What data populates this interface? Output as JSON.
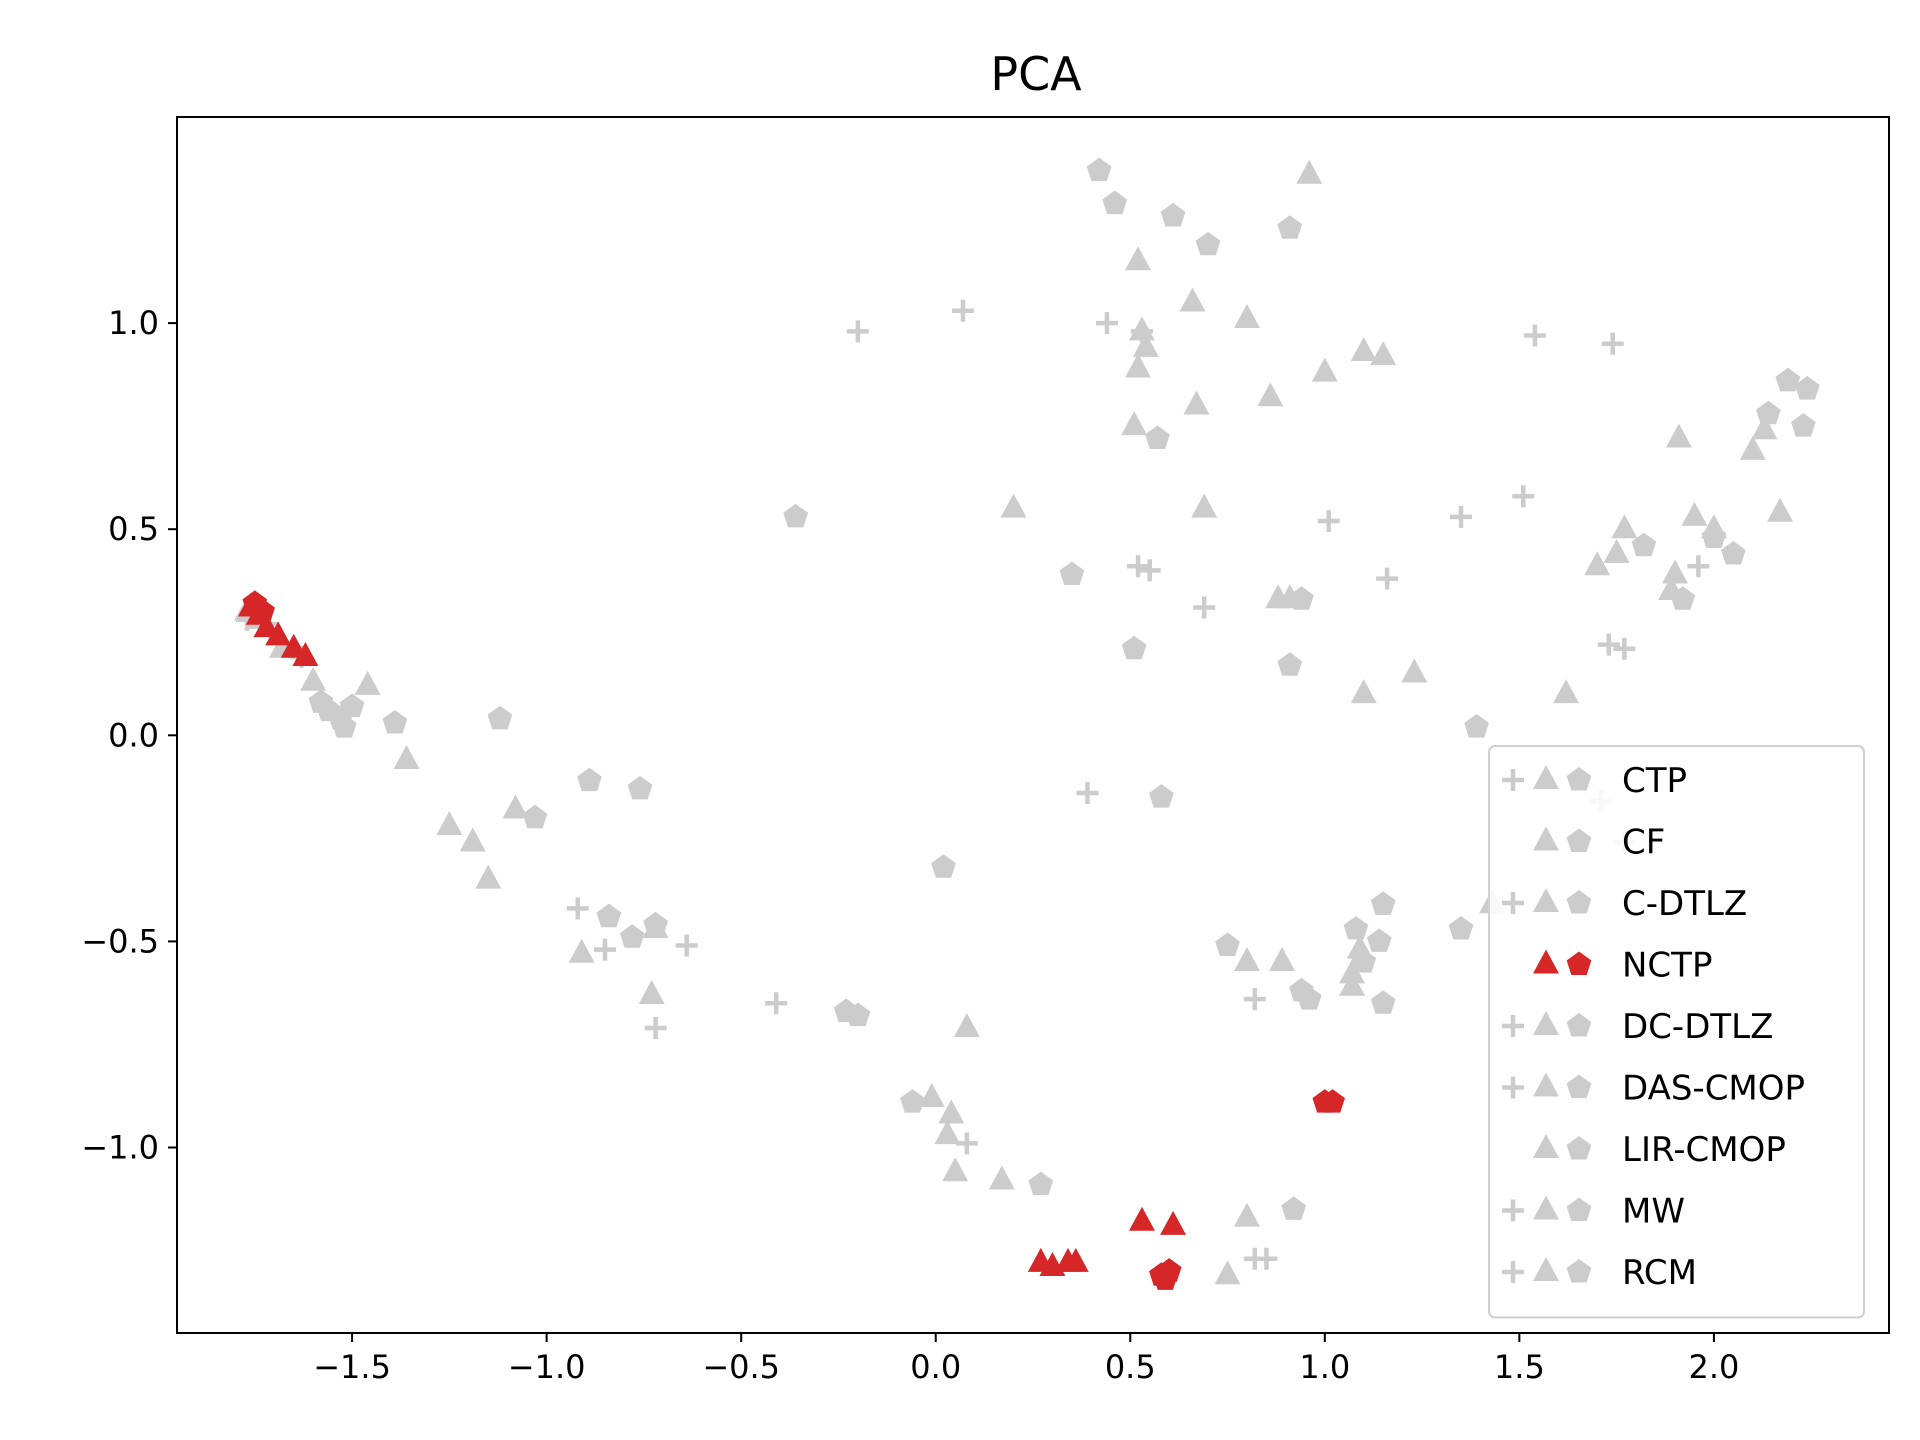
{
  "chart_data": {
    "type": "scatter",
    "title": "PCA",
    "xlabel": "",
    "ylabel": "",
    "xlim": [
      -1.95,
      2.45
    ],
    "ylim": [
      -1.45,
      1.5
    ],
    "xticks": [
      -1.5,
      -1.0,
      -0.5,
      0.0,
      0.5,
      1.0,
      1.5,
      2.0
    ],
    "yticks": [
      -1.0,
      -0.5,
      0.0,
      0.5,
      1.0
    ],
    "xtick_labels": [
      "−1.5",
      "−1.0",
      "−0.5",
      "0.0",
      "0.5",
      "1.0",
      "1.5",
      "2.0"
    ],
    "ytick_labels": [
      "−1.0",
      "−0.5",
      "0.0",
      "0.5",
      "1.0"
    ],
    "grid": false,
    "legend_position": "lower-right",
    "colors": {
      "gray": "#cccccc",
      "red": "#d62728"
    },
    "legend": [
      {
        "name": "CTP",
        "markers": [
          "plus",
          "triangle",
          "pentagon"
        ],
        "color": "#cccccc"
      },
      {
        "name": "CF",
        "markers": [
          "triangle",
          "pentagon"
        ],
        "color": "#cccccc"
      },
      {
        "name": "C-DTLZ",
        "markers": [
          "plus",
          "triangle",
          "pentagon"
        ],
        "color": "#cccccc"
      },
      {
        "name": "NCTP",
        "markers": [
          "triangle",
          "pentagon"
        ],
        "color": "#d62728"
      },
      {
        "name": "DC-DTLZ",
        "markers": [
          "plus",
          "triangle",
          "pentagon"
        ],
        "color": "#cccccc"
      },
      {
        "name": "DAS-CMOP",
        "markers": [
          "plus",
          "triangle",
          "pentagon"
        ],
        "color": "#cccccc"
      },
      {
        "name": "LIR-CMOP",
        "markers": [
          "triangle",
          "pentagon"
        ],
        "color": "#cccccc"
      },
      {
        "name": "MW",
        "markers": [
          "plus",
          "triangle",
          "pentagon"
        ],
        "color": "#cccccc"
      },
      {
        "name": "RCM",
        "markers": [
          "plus",
          "triangle",
          "pentagon"
        ],
        "color": "#cccccc"
      }
    ],
    "points": {
      "gray_plus": [
        [
          -0.2,
          0.98
        ],
        [
          0.07,
          1.03
        ],
        [
          0.44,
          1.0
        ],
        [
          0.53,
          0.98
        ],
        [
          1.54,
          0.97
        ],
        [
          1.74,
          0.95
        ],
        [
          1.51,
          0.58
        ],
        [
          1.35,
          0.53
        ],
        [
          1.01,
          0.52
        ],
        [
          0.52,
          0.41
        ],
        [
          0.55,
          0.4
        ],
        [
          1.16,
          0.38
        ],
        [
          0.69,
          0.31
        ],
        [
          1.96,
          0.41
        ],
        [
          1.73,
          0.22
        ],
        [
          1.77,
          0.21
        ],
        [
          0.39,
          -0.14
        ],
        [
          1.71,
          -0.16
        ],
        [
          1.77,
          -0.26
        ],
        [
          -0.92,
          -0.42
        ],
        [
          -0.85,
          -0.52
        ],
        [
          -0.64,
          -0.51
        ],
        [
          -0.41,
          -0.65
        ],
        [
          -0.72,
          -0.71
        ],
        [
          0.08,
          -0.99
        ],
        [
          0.82,
          -0.64
        ],
        [
          0.82,
          -1.27
        ],
        [
          0.85,
          -1.27
        ],
        [
          -1.77,
          0.28
        ],
        [
          -1.72,
          0.27
        ],
        [
          -1.63,
          0.19
        ]
      ],
      "gray_triangle": [
        [
          0.96,
          1.36
        ],
        [
          0.52,
          1.15
        ],
        [
          0.66,
          1.05
        ],
        [
          0.8,
          1.01
        ],
        [
          0.53,
          0.98
        ],
        [
          0.54,
          0.94
        ],
        [
          0.52,
          0.89
        ],
        [
          1.0,
          0.88
        ],
        [
          1.1,
          0.93
        ],
        [
          1.15,
          0.92
        ],
        [
          0.86,
          0.82
        ],
        [
          0.67,
          0.8
        ],
        [
          0.51,
          0.75
        ],
        [
          1.91,
          0.72
        ],
        [
          2.13,
          0.74
        ],
        [
          2.1,
          0.69
        ],
        [
          0.2,
          0.55
        ],
        [
          0.69,
          0.55
        ],
        [
          1.77,
          0.5
        ],
        [
          1.95,
          0.53
        ],
        [
          2.0,
          0.5
        ],
        [
          2.17,
          0.54
        ],
        [
          1.75,
          0.44
        ],
        [
          1.7,
          0.41
        ],
        [
          1.9,
          0.39
        ],
        [
          1.89,
          0.35
        ],
        [
          0.88,
          0.33
        ],
        [
          0.91,
          0.33
        ],
        [
          1.23,
          0.15
        ],
        [
          1.1,
          0.1
        ],
        [
          1.62,
          0.1
        ],
        [
          -1.77,
          0.3
        ],
        [
          -1.74,
          0.28
        ],
        [
          -1.68,
          0.21
        ],
        [
          -1.6,
          0.13
        ],
        [
          -1.46,
          0.12
        ],
        [
          -1.36,
          -0.06
        ],
        [
          -1.25,
          -0.22
        ],
        [
          -1.19,
          -0.26
        ],
        [
          -1.15,
          -0.35
        ],
        [
          -1.08,
          -0.18
        ],
        [
          -0.91,
          -0.53
        ],
        [
          -0.72,
          -0.47
        ],
        [
          -0.73,
          -0.63
        ],
        [
          0.08,
          -0.71
        ],
        [
          -0.01,
          -0.88
        ],
        [
          0.04,
          -0.92
        ],
        [
          0.03,
          -0.97
        ],
        [
          0.05,
          -1.06
        ],
        [
          0.17,
          -1.08
        ],
        [
          0.8,
          -0.55
        ],
        [
          0.89,
          -0.55
        ],
        [
          1.07,
          -0.58
        ],
        [
          1.07,
          -0.61
        ],
        [
          1.09,
          -0.52
        ],
        [
          1.43,
          -0.41
        ],
        [
          0.8,
          -1.17
        ],
        [
          0.75,
          -1.31
        ]
      ],
      "gray_pentagon": [
        [
          0.42,
          1.37
        ],
        [
          0.46,
          1.29
        ],
        [
          0.61,
          1.26
        ],
        [
          0.7,
          1.19
        ],
        [
          0.91,
          1.23
        ],
        [
          2.19,
          0.86
        ],
        [
          2.24,
          0.84
        ],
        [
          2.14,
          0.78
        ],
        [
          2.23,
          0.75
        ],
        [
          0.57,
          0.72
        ],
        [
          -0.36,
          0.53
        ],
        [
          0.35,
          0.39
        ],
        [
          1.82,
          0.46
        ],
        [
          2.0,
          0.48
        ],
        [
          2.05,
          0.44
        ],
        [
          1.92,
          0.33
        ],
        [
          0.94,
          0.33
        ],
        [
          0.51,
          0.21
        ],
        [
          0.91,
          0.17
        ],
        [
          1.39,
          0.02
        ],
        [
          -1.12,
          0.04
        ],
        [
          -1.39,
          0.03
        ],
        [
          -1.58,
          0.08
        ],
        [
          -1.56,
          0.06
        ],
        [
          -1.53,
          0.04
        ],
        [
          -1.52,
          0.02
        ],
        [
          -1.5,
          0.07
        ],
        [
          -1.03,
          -0.2
        ],
        [
          -0.89,
          -0.11
        ],
        [
          -0.76,
          -0.13
        ],
        [
          0.58,
          -0.15
        ],
        [
          0.02,
          -0.32
        ],
        [
          -0.84,
          -0.44
        ],
        [
          -0.78,
          -0.49
        ],
        [
          -0.72,
          -0.46
        ],
        [
          -0.23,
          -0.67
        ],
        [
          -0.2,
          -0.68
        ],
        [
          -0.06,
          -0.89
        ],
        [
          0.27,
          -1.09
        ],
        [
          0.75,
          -0.51
        ],
        [
          0.94,
          -0.62
        ],
        [
          0.96,
          -0.64
        ],
        [
          1.08,
          -0.47
        ],
        [
          1.15,
          -0.41
        ],
        [
          1.14,
          -0.5
        ],
        [
          1.1,
          -0.55
        ],
        [
          1.15,
          -0.65
        ],
        [
          1.35,
          -0.47
        ],
        [
          0.92,
          -1.15
        ]
      ],
      "red_triangle": [
        [
          -1.76,
          0.31
        ],
        [
          -1.74,
          0.29
        ],
        [
          -1.72,
          0.26
        ],
        [
          -1.69,
          0.24
        ],
        [
          -1.65,
          0.21
        ],
        [
          -1.62,
          0.19
        ],
        [
          0.27,
          -1.28
        ],
        [
          0.3,
          -1.29
        ],
        [
          0.34,
          -1.28
        ],
        [
          0.36,
          -1.28
        ],
        [
          0.53,
          -1.18
        ],
        [
          0.61,
          -1.19
        ]
      ],
      "red_pentagon": [
        [
          -1.75,
          0.32
        ],
        [
          -1.73,
          0.3
        ],
        [
          0.58,
          -1.31
        ],
        [
          0.6,
          -1.3
        ],
        [
          0.59,
          -1.32
        ],
        [
          1.0,
          -0.89
        ],
        [
          1.02,
          -0.89
        ]
      ]
    }
  }
}
